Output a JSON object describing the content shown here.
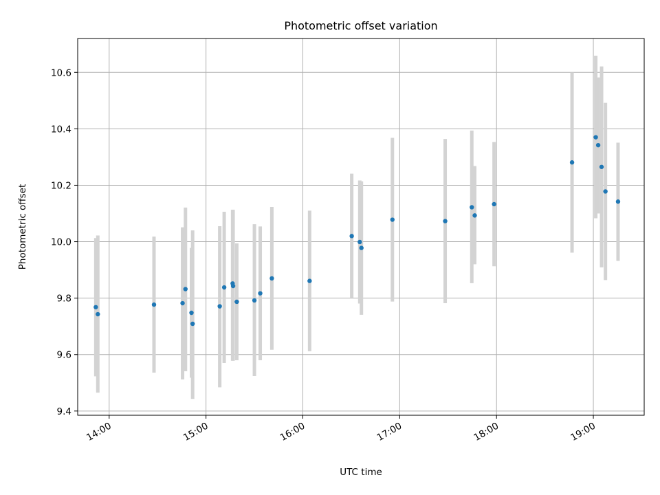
{
  "chart_data": {
    "type": "scatter",
    "title": "Photometric offset variation",
    "xlabel": "UTC time",
    "ylabel": "Photometric offset",
    "xlim": [
      13.675,
      19.525
    ],
    "ylim": [
      9.385,
      10.72
    ],
    "x_ticks": [
      {
        "value": 14,
        "label": "14:00"
      },
      {
        "value": 15,
        "label": "15:00"
      },
      {
        "value": 16,
        "label": "16:00"
      },
      {
        "value": 17,
        "label": "17:00"
      },
      {
        "value": 18,
        "label": "18:00"
      },
      {
        "value": 19,
        "label": "19:00"
      }
    ],
    "y_ticks": [
      {
        "value": 9.4,
        "label": "9.4"
      },
      {
        "value": 9.6,
        "label": "9.6"
      },
      {
        "value": 9.8,
        "label": "9.8"
      },
      {
        "value": 10.0,
        "label": "10.0"
      },
      {
        "value": 10.2,
        "label": "10.2"
      },
      {
        "value": 10.4,
        "label": "10.4"
      },
      {
        "value": 10.6,
        "label": "10.6"
      }
    ],
    "grid": true,
    "marker_color": "#1f77b4",
    "errorbar_color": "#d3d3d3",
    "series": [
      {
        "name": "Photometric offset",
        "points": [
          {
            "x": 13.862,
            "y": 9.768,
            "ylo": 9.523,
            "yhi": 10.013
          },
          {
            "x": 13.883,
            "y": 9.743,
            "ylo": 9.465,
            "yhi": 10.022
          },
          {
            "x": 14.463,
            "y": 9.777,
            "ylo": 9.536,
            "yhi": 10.018
          },
          {
            "x": 14.758,
            "y": 9.782,
            "ylo": 9.512,
            "yhi": 10.051
          },
          {
            "x": 14.788,
            "y": 9.832,
            "ylo": 9.541,
            "yhi": 10.121
          },
          {
            "x": 14.85,
            "y": 9.748,
            "ylo": 9.518,
            "yhi": 9.978
          },
          {
            "x": 14.862,
            "y": 9.709,
            "ylo": 9.443,
            "yhi": 10.04
          },
          {
            "x": 15.142,
            "y": 9.771,
            "ylo": 9.484,
            "yhi": 10.055
          },
          {
            "x": 15.188,
            "y": 9.838,
            "ylo": 9.57,
            "yhi": 10.106
          },
          {
            "x": 15.275,
            "y": 9.852,
            "ylo": 9.578,
            "yhi": 10.113
          },
          {
            "x": 15.28,
            "y": 9.843,
            "ylo": 9.578,
            "yhi": 10.113
          },
          {
            "x": 15.318,
            "y": 9.787,
            "ylo": 9.58,
            "yhi": 9.994
          },
          {
            "x": 15.5,
            "y": 9.792,
            "ylo": 9.524,
            "yhi": 10.062
          },
          {
            "x": 15.56,
            "y": 9.817,
            "ylo": 9.58,
            "yhi": 10.054
          },
          {
            "x": 15.68,
            "y": 9.87,
            "ylo": 9.617,
            "yhi": 10.123
          },
          {
            "x": 16.07,
            "y": 9.861,
            "ylo": 9.612,
            "yhi": 10.11
          },
          {
            "x": 16.505,
            "y": 10.02,
            "ylo": 9.802,
            "yhi": 10.241
          },
          {
            "x": 16.588,
            "y": 9.999,
            "ylo": 9.781,
            "yhi": 10.217
          },
          {
            "x": 16.605,
            "y": 9.978,
            "ylo": 9.741,
            "yhi": 10.214
          },
          {
            "x": 16.925,
            "y": 10.078,
            "ylo": 9.788,
            "yhi": 10.368
          },
          {
            "x": 17.47,
            "y": 10.073,
            "ylo": 9.782,
            "yhi": 10.364
          },
          {
            "x": 17.745,
            "y": 10.122,
            "ylo": 9.853,
            "yhi": 10.394
          },
          {
            "x": 17.775,
            "y": 10.093,
            "ylo": 9.92,
            "yhi": 10.268
          },
          {
            "x": 17.975,
            "y": 10.133,
            "ylo": 9.913,
            "yhi": 10.353
          },
          {
            "x": 18.78,
            "y": 10.281,
            "ylo": 9.961,
            "yhi": 10.6
          },
          {
            "x": 19.025,
            "y": 10.37,
            "ylo": 10.083,
            "yhi": 10.659
          },
          {
            "x": 19.05,
            "y": 10.342,
            "ylo": 10.1,
            "yhi": 10.582
          },
          {
            "x": 19.085,
            "y": 10.265,
            "ylo": 9.909,
            "yhi": 10.621
          },
          {
            "x": 19.125,
            "y": 10.178,
            "ylo": 9.864,
            "yhi": 10.492
          },
          {
            "x": 19.255,
            "y": 10.142,
            "ylo": 9.932,
            "yhi": 10.351
          }
        ]
      }
    ]
  }
}
